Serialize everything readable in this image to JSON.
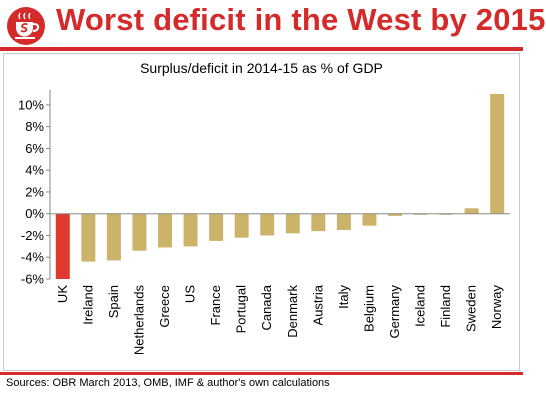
{
  "header": {
    "title": "Worst deficit in the West by 2015",
    "logo_icon": "red-s-coffee-cup-logo"
  },
  "colors": {
    "accent": "#d42a2a",
    "highlight_bar": "#e03a2e",
    "bar": "#cbb46a",
    "frame": "#c9c9c9"
  },
  "chart_data": {
    "type": "bar",
    "title": "Surplus/deficit in 2014-15 as % of GDP",
    "xlabel": "",
    "ylabel": "",
    "categories": [
      "UK",
      "Ireland",
      "Spain",
      "Netherlands",
      "Greece",
      "US",
      "France",
      "Portugal",
      "Canada",
      "Denmark",
      "Austria",
      "Italy",
      "Belgium",
      "Germany",
      "Iceland",
      "Finland",
      "Sweden",
      "Norway"
    ],
    "values": [
      -6.0,
      -4.4,
      -4.3,
      -3.4,
      -3.1,
      -3.0,
      -2.5,
      -2.2,
      -2.0,
      -1.8,
      -1.6,
      -1.5,
      -1.1,
      -0.2,
      -0.1,
      -0.1,
      0.5,
      11.0
    ],
    "highlight": "UK",
    "ylim": [
      -6,
      11
    ],
    "yticks": [
      -6,
      -4,
      -2,
      0,
      2,
      4,
      6,
      8,
      10
    ],
    "ytick_labels": [
      "-6%",
      "-4%",
      "-2%",
      "0%",
      "2%",
      "4%",
      "6%",
      "8%",
      "10%"
    ],
    "grid": false,
    "legend": "none"
  },
  "footer": {
    "source": "Sources: OBR March 2013, OMB, IMF & author's own calculations"
  }
}
